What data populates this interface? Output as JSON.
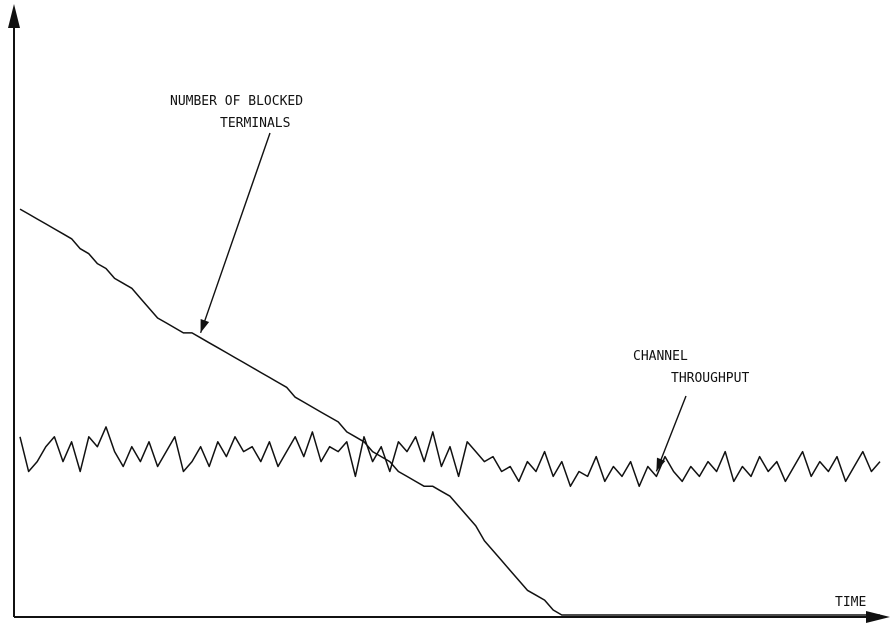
{
  "chart_data": {
    "type": "line",
    "xlabel": "TIME",
    "ylabel": "",
    "xlim": [
      0,
      100
    ],
    "ylim": [
      0,
      100
    ],
    "grid": false,
    "series": [
      {
        "name": "NUMBER OF BLOCKED TERMINALS",
        "x": [
          0,
          1,
          2,
          3,
          4,
          5,
          6,
          7,
          8,
          9,
          10,
          11,
          12,
          13,
          14,
          15,
          16,
          17,
          18,
          19,
          20,
          21,
          22,
          23,
          24,
          25,
          26,
          27,
          28,
          29,
          30,
          31,
          32,
          33,
          34,
          35,
          36,
          37,
          38,
          39,
          40,
          41,
          42,
          43,
          44,
          45,
          46,
          47,
          48,
          49,
          50,
          51,
          52,
          53,
          54,
          55,
          56,
          57,
          58,
          59,
          60,
          61,
          62,
          63,
          64,
          65,
          66,
          67,
          68,
          69,
          70,
          71,
          72,
          73,
          74,
          75,
          76,
          77,
          78,
          79,
          80,
          81,
          82,
          83,
          84,
          85,
          86,
          87,
          88,
          89,
          90,
          91,
          92,
          93,
          94,
          95,
          96,
          97,
          98,
          99,
          100
        ],
        "values": [
          82,
          81,
          80,
          79,
          78,
          77,
          76,
          74,
          73,
          71,
          70,
          68,
          67,
          66,
          64,
          62,
          60,
          59,
          58,
          57,
          57,
          56,
          55,
          54,
          53,
          52,
          51,
          50,
          49,
          48,
          47,
          46,
          44,
          43,
          42,
          41,
          40,
          39,
          37,
          36,
          35,
          33,
          32,
          31,
          29,
          28,
          27,
          26,
          26,
          25,
          24,
          22,
          20,
          18,
          15,
          13,
          11,
          9,
          7,
          5,
          4,
          3,
          1,
          0,
          0,
          0,
          0,
          0,
          0,
          0,
          0,
          0,
          0,
          0,
          0,
          0,
          0,
          0,
          0,
          0,
          0,
          0,
          0,
          0,
          0,
          0,
          0,
          0,
          0,
          0,
          0,
          0,
          0,
          0,
          0,
          0,
          0,
          0,
          0,
          0,
          0
        ]
      },
      {
        "name": "CHANNEL THROUGHPUT",
        "x": [
          0,
          1,
          2,
          3,
          4,
          5,
          6,
          7,
          8,
          9,
          10,
          11,
          12,
          13,
          14,
          15,
          16,
          17,
          18,
          19,
          20,
          21,
          22,
          23,
          24,
          25,
          26,
          27,
          28,
          29,
          30,
          31,
          32,
          33,
          34,
          35,
          36,
          37,
          38,
          39,
          40,
          41,
          42,
          43,
          44,
          45,
          46,
          47,
          48,
          49,
          50,
          51,
          52,
          53,
          54,
          55,
          56,
          57,
          58,
          59,
          60,
          61,
          62,
          63,
          64,
          65,
          66,
          67,
          68,
          69,
          70,
          71,
          72,
          73,
          74,
          75,
          76,
          77,
          78,
          79,
          80,
          81,
          82,
          83,
          84,
          85,
          86,
          87,
          88,
          89,
          90,
          91,
          92,
          93,
          94,
          95,
          96,
          97,
          98,
          99,
          100
        ],
        "values": [
          36,
          29,
          31,
          34,
          36,
          31,
          35,
          29,
          36,
          34,
          38,
          33,
          30,
          34,
          31,
          35,
          30,
          33,
          36,
          29,
          31,
          34,
          30,
          35,
          32,
          36,
          33,
          34,
          31,
          35,
          30,
          33,
          36,
          32,
          37,
          31,
          34,
          33,
          35,
          28,
          36,
          31,
          34,
          29,
          35,
          33,
          36,
          31,
          37,
          30,
          34,
          28,
          35,
          33,
          31,
          32,
          29,
          30,
          27,
          31,
          29,
          33,
          28,
          31,
          26,
          29,
          28,
          32,
          27,
          30,
          28,
          31,
          26,
          30,
          28,
          32,
          29,
          27,
          30,
          28,
          31,
          29,
          33,
          27,
          30,
          28,
          32,
          29,
          31,
          27,
          30,
          33,
          28,
          31,
          29,
          32,
          27,
          30,
          33,
          29,
          31
        ]
      }
    ],
    "annotations": [
      {
        "lines": [
          "NUMBER OF BLOCKED",
          "TERMINALS"
        ],
        "series": 0,
        "target_x": 21
      },
      {
        "lines": [
          "CHANNEL",
          "THROUGHPUT"
        ],
        "series": 1,
        "target_x": 74
      }
    ]
  }
}
